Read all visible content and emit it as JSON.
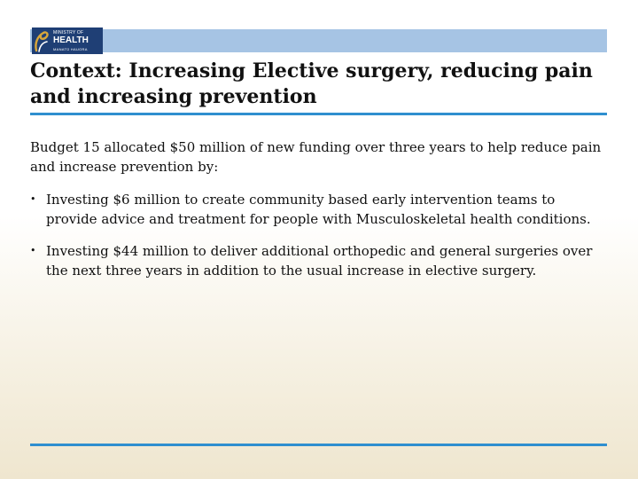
{
  "logo": {
    "line1": "MINISTRY OF",
    "line2": "HEALTH",
    "line3": "MANATŪ HAUORA"
  },
  "title": "Context: Increasing Elective surgery, reducing pain and increasing prevention",
  "intro": "Budget 15 allocated $50 million of new funding over three years to help reduce pain and increase prevention by:",
  "bullets": [
    {
      "marker": "•",
      "text": "Investing $6 million to create community based early intervention teams to provide advice and treatment for people with Musculoskeletal  health conditions."
    },
    {
      "marker": "•",
      "text": "Investing $44 million to deliver additional orthopedic and general surgeries over the next three years in addition to the usual increase in elective surgery."
    }
  ],
  "colors": {
    "top_bar": "#a6c4e4",
    "logo_bg": "#1f3f75",
    "rule": "#2f8fcf"
  }
}
